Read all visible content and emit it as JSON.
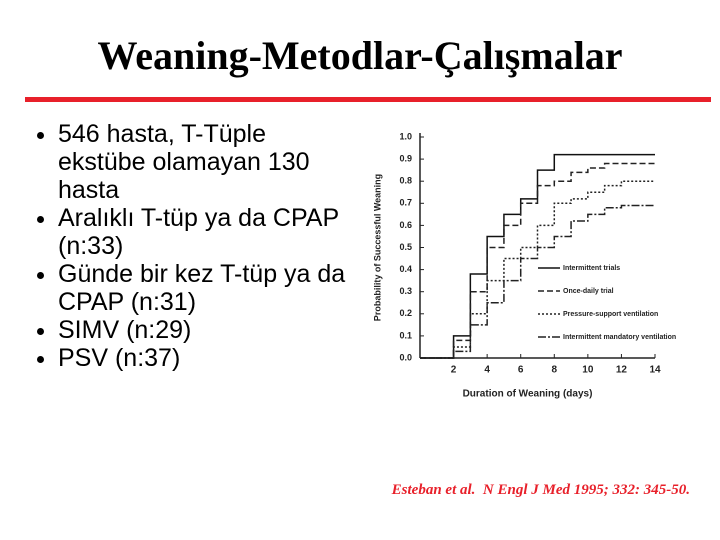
{
  "title": "Weaning-Metodlar-Çalışmalar",
  "bullets": [
    "546 hasta, T-Tüple ekstübe olamayan 130 hasta",
    "Aralıklı T-tüp ya da CPAP (n:33)",
    "Günde bir kez T-tüp ya da CPAP (n:31)",
    "SIMV (n:29)",
    "PSV (n:37)"
  ],
  "citation": "Esteban et al.  N Engl J Med 1995; 332: 345-50.",
  "chart_data": {
    "type": "step",
    "xlabel": "Duration of Weaning (days)",
    "ylabel": "Probability of Successful Weaning",
    "x": [
      0,
      1,
      2,
      3,
      4,
      5,
      6,
      7,
      8,
      9,
      10,
      11,
      12,
      13,
      14
    ],
    "series": [
      {
        "name": "Intermittent trials",
        "color": "#111111",
        "dash": "none",
        "values": [
          0,
          0,
          0.1,
          0.38,
          0.55,
          0.65,
          0.72,
          0.85,
          0.92,
          0.92,
          0.92,
          0.92,
          0.92,
          0.92,
          0.92
        ]
      },
      {
        "name": "Once-daily trial",
        "color": "#222222",
        "dash": "6 3",
        "values": [
          0,
          0,
          0.08,
          0.3,
          0.5,
          0.6,
          0.7,
          0.78,
          0.8,
          0.84,
          0.86,
          0.88,
          0.88,
          0.88,
          0.88
        ]
      },
      {
        "name": "Pressure-support ventilation",
        "color": "#222222",
        "dash": "2 2",
        "values": [
          0,
          0,
          0.05,
          0.2,
          0.35,
          0.45,
          0.5,
          0.6,
          0.7,
          0.72,
          0.75,
          0.78,
          0.8,
          0.8,
          0.8
        ]
      },
      {
        "name": "Intermittent mandatory ventilation",
        "color": "#222222",
        "dash": "8 2 2 2",
        "values": [
          0,
          0,
          0.03,
          0.15,
          0.25,
          0.35,
          0.45,
          0.5,
          0.55,
          0.62,
          0.65,
          0.68,
          0.69,
          0.69,
          0.69
        ]
      }
    ],
    "xlim": [
      0,
      14
    ],
    "ylim": [
      0,
      1
    ],
    "xticks": [
      2,
      4,
      6,
      8,
      10,
      12,
      14
    ],
    "yticks": [
      {
        "value": 0,
        "label": "0.0"
      },
      0.1,
      0.2,
      0.3,
      0.4,
      0.5,
      0.6,
      0.7,
      0.8,
      0.9,
      {
        "value": 1,
        "label": "1.0"
      }
    ]
  }
}
